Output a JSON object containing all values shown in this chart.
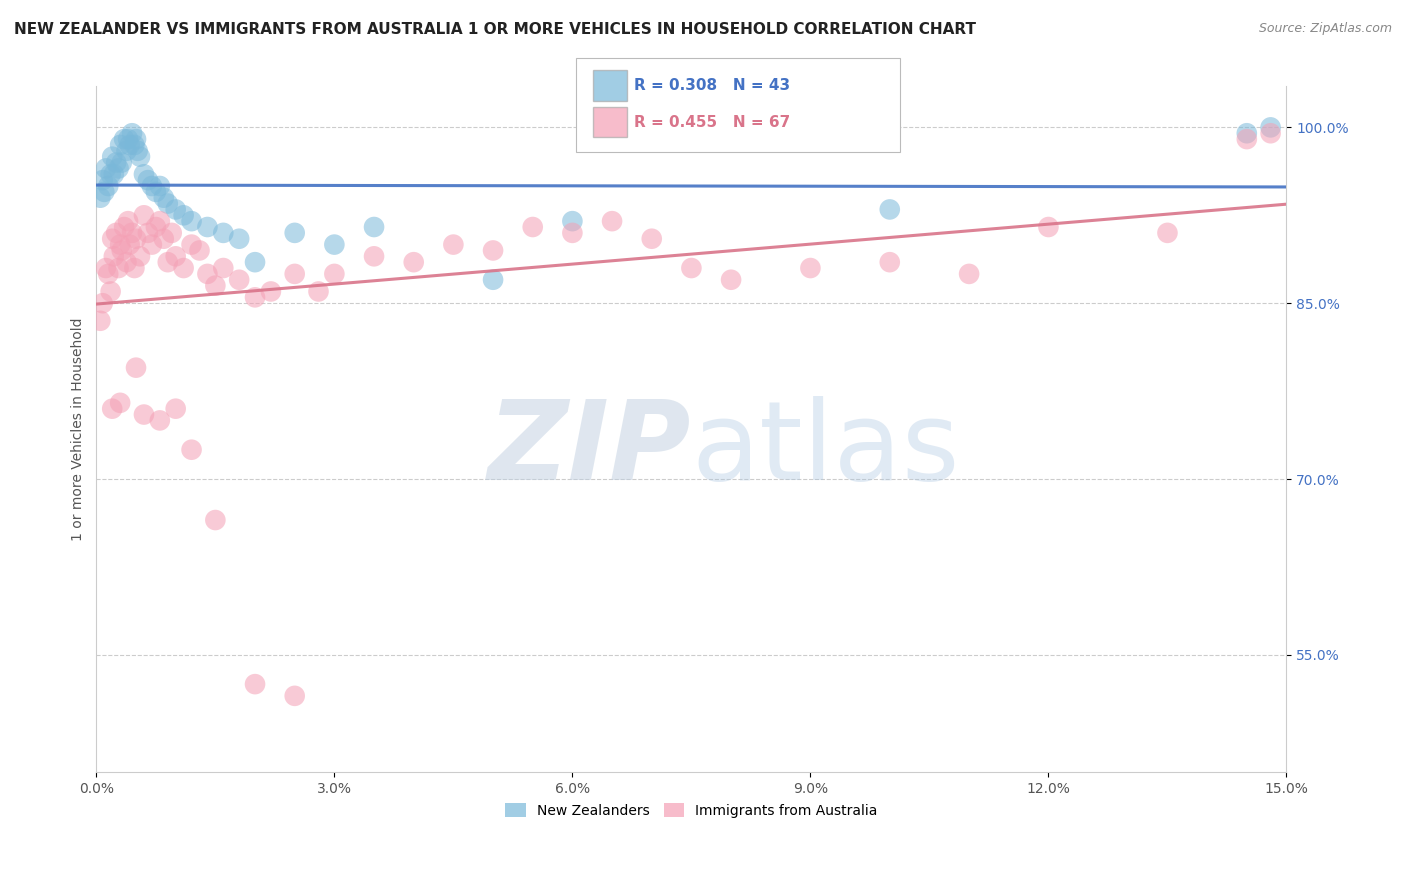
{
  "title": "NEW ZEALANDER VS IMMIGRANTS FROM AUSTRALIA 1 OR MORE VEHICLES IN HOUSEHOLD CORRELATION CHART",
  "source": "Source: ZipAtlas.com",
  "ylabel": "1 or more Vehicles in Household",
  "xlim": [
    0.0,
    15.0
  ],
  "ylim": [
    45.0,
    103.5
  ],
  "yticks": [
    55.0,
    70.0,
    85.0,
    100.0
  ],
  "xticks": [
    0.0,
    3.0,
    6.0,
    9.0,
    12.0,
    15.0
  ],
  "blue_R": 0.308,
  "blue_N": 43,
  "pink_R": 0.455,
  "pink_N": 67,
  "blue_color": "#7ab8d9",
  "pink_color": "#f4a0b5",
  "blue_line_color": "#4472c4",
  "pink_line_color": "#d9748a",
  "legend_blue_label": "New Zealanders",
  "legend_pink_label": "Immigrants from Australia",
  "blue_x": [
    0.05,
    0.08,
    0.1,
    0.12,
    0.15,
    0.18,
    0.2,
    0.22,
    0.25,
    0.28,
    0.3,
    0.32,
    0.35,
    0.38,
    0.4,
    0.42,
    0.45,
    0.48,
    0.5,
    0.52,
    0.55,
    0.6,
    0.65,
    0.7,
    0.75,
    0.8,
    0.85,
    0.9,
    1.0,
    1.1,
    1.2,
    1.4,
    1.6,
    1.8,
    2.0,
    2.5,
    3.0,
    3.5,
    5.0,
    6.0,
    10.0,
    14.5,
    14.8
  ],
  "blue_y": [
    94.0,
    95.5,
    94.5,
    96.5,
    95.0,
    96.0,
    97.5,
    96.0,
    97.0,
    96.5,
    98.5,
    97.0,
    99.0,
    98.0,
    99.0,
    98.5,
    99.5,
    98.5,
    99.0,
    98.0,
    97.5,
    96.0,
    95.5,
    95.0,
    94.5,
    95.0,
    94.0,
    93.5,
    93.0,
    92.5,
    92.0,
    91.5,
    91.0,
    90.5,
    88.5,
    91.0,
    90.0,
    91.5,
    87.0,
    92.0,
    93.0,
    99.5,
    100.0
  ],
  "pink_x": [
    0.05,
    0.08,
    0.12,
    0.15,
    0.18,
    0.2,
    0.22,
    0.25,
    0.28,
    0.3,
    0.32,
    0.35,
    0.38,
    0.4,
    0.42,
    0.45,
    0.48,
    0.5,
    0.55,
    0.6,
    0.65,
    0.7,
    0.75,
    0.8,
    0.85,
    0.9,
    0.95,
    1.0,
    1.1,
    1.2,
    1.3,
    1.4,
    1.5,
    1.6,
    1.8,
    2.0,
    2.2,
    2.5,
    2.8,
    3.0,
    3.5,
    4.0,
    4.5,
    5.0,
    5.5,
    6.0,
    6.5,
    7.0,
    7.5,
    8.0,
    9.0,
    10.0,
    11.0,
    12.0,
    13.5,
    14.5,
    14.8,
    0.2,
    0.3,
    0.5,
    0.6,
    0.8,
    1.0,
    1.2,
    1.5,
    2.0,
    2.5
  ],
  "pink_y": [
    83.5,
    85.0,
    88.0,
    87.5,
    86.0,
    90.5,
    89.0,
    91.0,
    88.0,
    90.0,
    89.5,
    91.5,
    88.5,
    92.0,
    90.0,
    91.0,
    88.0,
    90.5,
    89.0,
    92.5,
    91.0,
    90.0,
    91.5,
    92.0,
    90.5,
    88.5,
    91.0,
    89.0,
    88.0,
    90.0,
    89.5,
    87.5,
    86.5,
    88.0,
    87.0,
    85.5,
    86.0,
    87.5,
    86.0,
    87.5,
    89.0,
    88.5,
    90.0,
    89.5,
    91.5,
    91.0,
    92.0,
    90.5,
    88.0,
    87.0,
    88.0,
    88.5,
    87.5,
    91.5,
    91.0,
    99.0,
    99.5,
    76.0,
    76.5,
    79.5,
    75.5,
    75.0,
    76.0,
    72.5,
    66.5,
    52.5,
    51.5
  ],
  "watermark_zip": "ZIP",
  "watermark_atlas": "atlas",
  "background_color": "#ffffff",
  "title_fontsize": 11,
  "axis_label_fontsize": 10,
  "tick_fontsize": 10,
  "ytick_color": "#4472c4",
  "xtick_color": "#555555"
}
